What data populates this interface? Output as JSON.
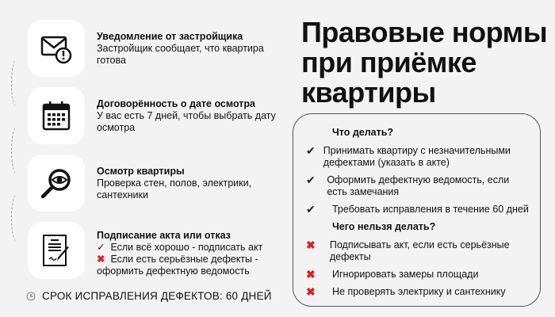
{
  "title": {
    "line1": "Правовые нормы",
    "line2": "при приёмке",
    "line3": "квартиры"
  },
  "steps": [
    {
      "icon": "envelope-warning-icon",
      "title": "Уведомление от застройщика",
      "text": "Застройщик сообщает, что квартира готова"
    },
    {
      "icon": "calendar-icon",
      "title": "Договорённость о дате осмотра",
      "text": "У вас есть 7 дней, чтобы выбрать дату осмотра"
    },
    {
      "icon": "magnifier-eye-icon",
      "title": "Осмотр квартиры",
      "text": "Проверка стен, полов, электрики, сантехники"
    },
    {
      "icon": "document-sign-icon",
      "title": "Подписание акта или отказ",
      "ok": "Если всё хорошо - подписать акт",
      "no": "Если есть серьёзные дефекты - оформить дефектную ведомость"
    }
  ],
  "deadline": {
    "icon": "clock-icon",
    "text": "СРОК ИСПРАВЛЕНИЯ ДЕФЕКТОВ: 60 ДНЕЙ"
  },
  "card": {
    "do_title": "Что делать?",
    "do": [
      "Принимать квартиру с незначительными дефектами (указать в акте)",
      "Оформить дефектную ведомость, если есть замечания",
      "Требовать исправления в течение 60 дней"
    ],
    "dont_title": "Чего нельзя делать?",
    "dont": [
      "Подписывать акт, если есть серьёзные дефекты",
      "Игнорировать замеры площади",
      "Не проверять электрику и сантехнику"
    ]
  },
  "marks": {
    "check": "✔",
    "cross": "✖",
    "small_check": "✓"
  },
  "colors": {
    "cross": "#e01e1e",
    "background": "#f3f3f3"
  }
}
